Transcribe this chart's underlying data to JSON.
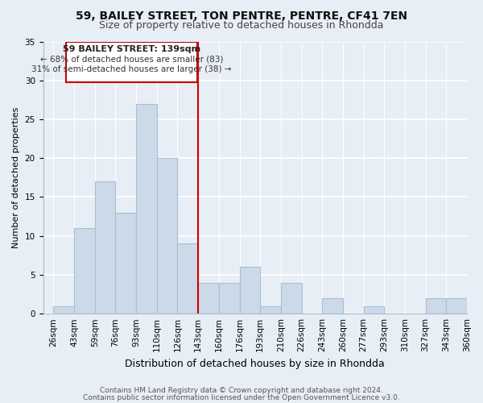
{
  "title": "59, BAILEY STREET, TON PENTRE, PENTRE, CF41 7EN",
  "subtitle": "Size of property relative to detached houses in Rhondda",
  "xlabel": "Distribution of detached houses by size in Rhondda",
  "ylabel": "Number of detached properties",
  "footer_line1": "Contains HM Land Registry data © Crown copyright and database right 2024.",
  "footer_line2": "Contains public sector information licensed under the Open Government Licence v3.0.",
  "categories": [
    "26sqm",
    "43sqm",
    "59sqm",
    "76sqm",
    "93sqm",
    "110sqm",
    "126sqm",
    "143sqm",
    "160sqm",
    "176sqm",
    "193sqm",
    "210sqm",
    "226sqm",
    "243sqm",
    "260sqm",
    "277sqm",
    "293sqm",
    "310sqm",
    "327sqm",
    "343sqm",
    "360sqm"
  ],
  "values": [
    1,
    11,
    17,
    13,
    27,
    20,
    9,
    4,
    4,
    6,
    1,
    4,
    0,
    2,
    0,
    1,
    0,
    0,
    2,
    2
  ],
  "bar_color": "#ccd9e8",
  "bar_edge_color": "#a8bfd4",
  "reference_line_value": 7,
  "reference_line_color": "#cc0000",
  "annotation_title": "59 BAILEY STREET: 139sqm",
  "annotation_line1": "← 68% of detached houses are smaller (83)",
  "annotation_line2": "31% of semi-detached houses are larger (38) →",
  "annotation_box_facecolor": "#ffffff",
  "annotation_box_edgecolor": "#cc0000",
  "ylim": [
    0,
    35
  ],
  "yticks": [
    0,
    5,
    10,
    15,
    20,
    25,
    30,
    35
  ],
  "plot_bg_color": "#e8eef5",
  "fig_bg_color": "#e8eef5",
  "grid_color": "#ffffff",
  "title_fontsize": 10,
  "subtitle_fontsize": 9,
  "ylabel_fontsize": 8,
  "xlabel_fontsize": 9,
  "tick_fontsize": 7.5,
  "footer_fontsize": 6.5
}
